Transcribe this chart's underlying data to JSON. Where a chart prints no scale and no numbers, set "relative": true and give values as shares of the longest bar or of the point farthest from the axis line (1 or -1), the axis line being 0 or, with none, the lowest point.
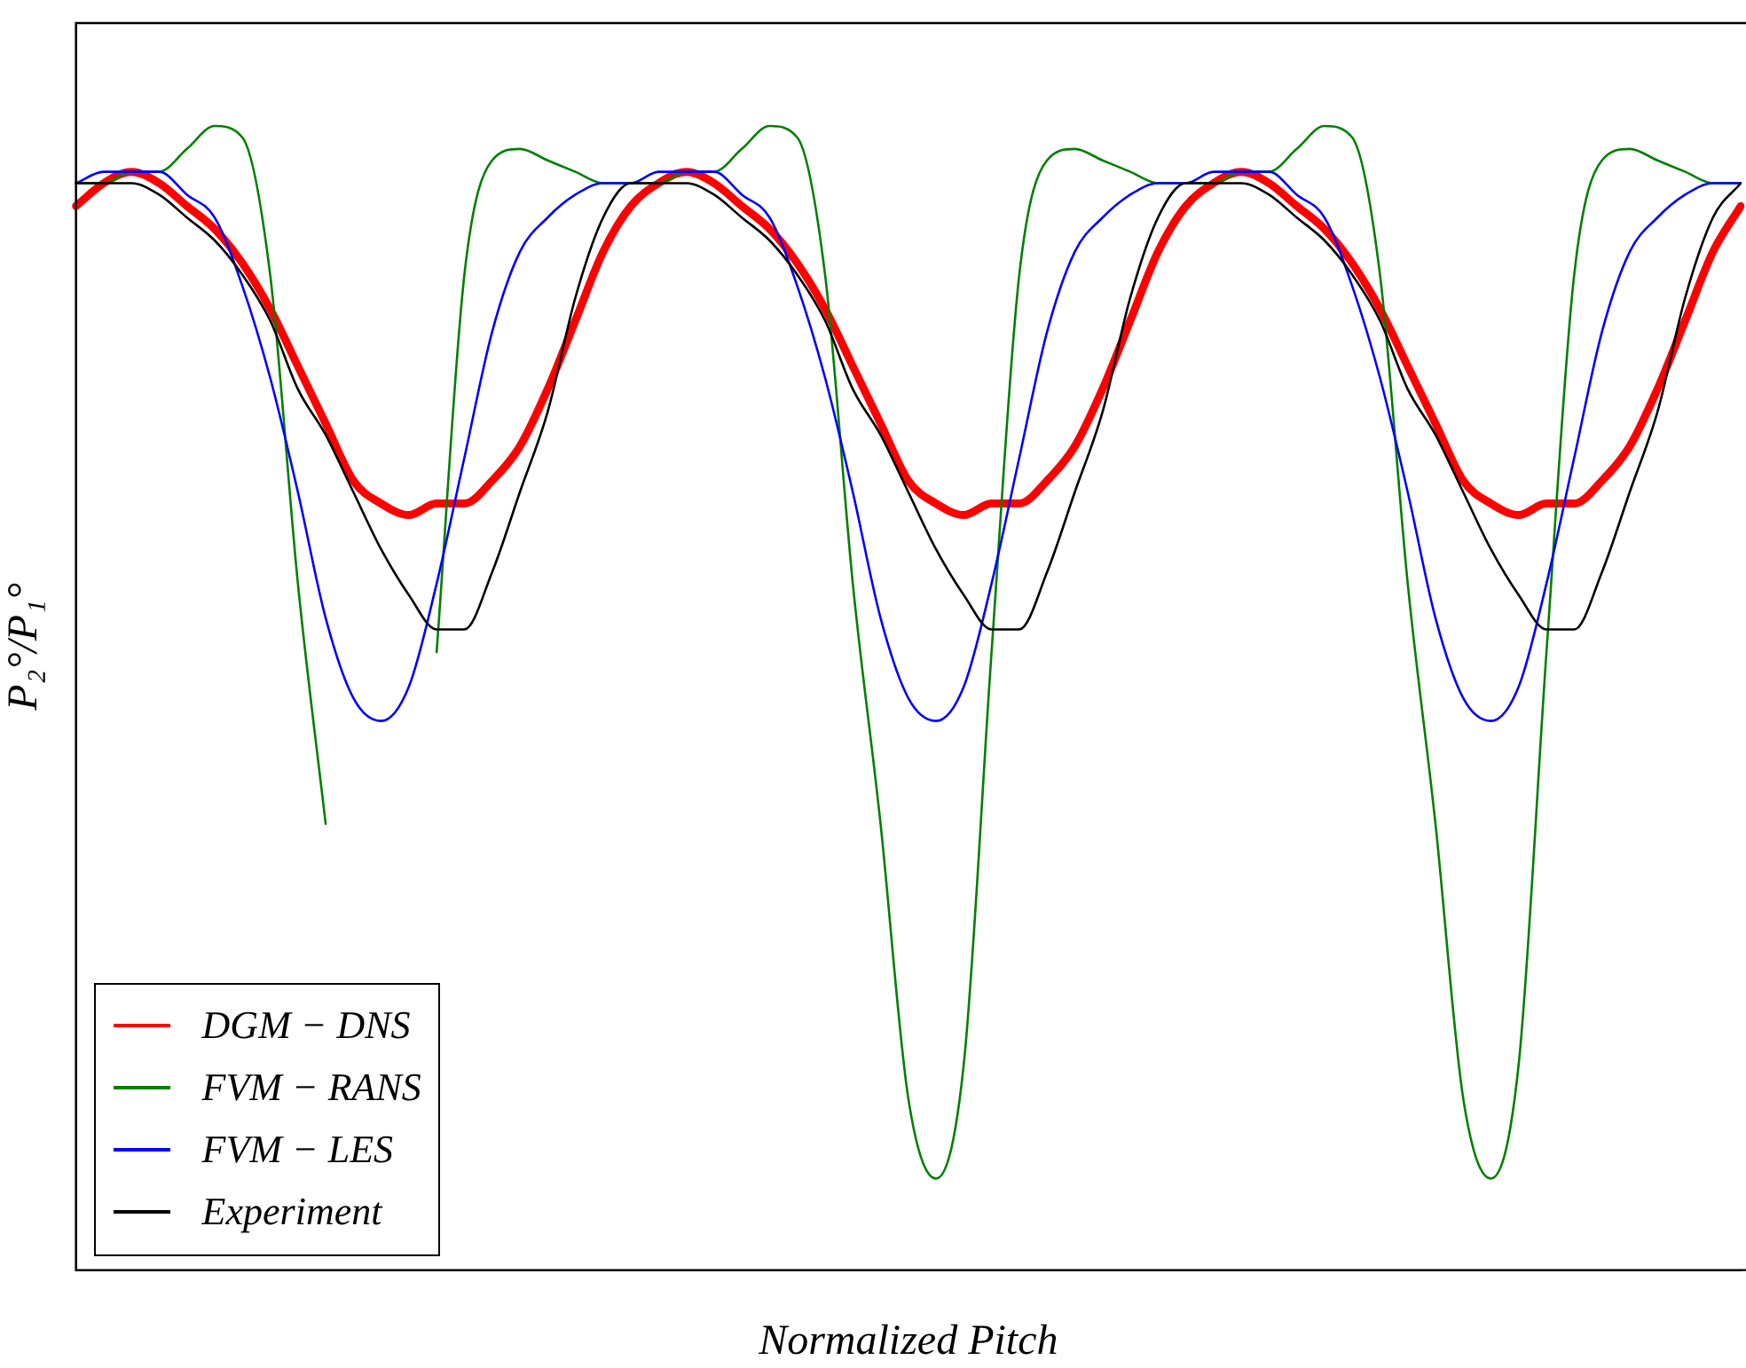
{
  "chart_data": {
    "type": "line",
    "relative": true,
    "xlabel": "Normalized Pitch",
    "ylabel": "P₂°/P₁°",
    "legend": "bottom left",
    "grid": false,
    "marker": "none",
    "line_style": "solid",
    "categories": [
      null,
      null,
      null,
      null,
      null,
      null,
      null,
      null,
      null,
      null,
      null,
      null,
      null,
      null,
      null,
      null,
      null,
      null,
      null,
      null,
      null,
      null,
      null,
      null,
      null,
      null,
      null,
      null,
      null,
      null,
      null,
      null,
      null,
      null,
      null,
      null,
      null,
      null,
      null,
      null,
      null,
      null,
      null,
      null,
      null,
      null,
      null,
      null,
      null,
      null,
      null,
      null,
      null,
      null,
      null,
      null,
      null,
      null,
      null,
      null,
      null
    ],
    "series": [
      {
        "name": "DGM − DNS",
        "color": "#ff0000",
        "values": [
          0.93,
          0.95,
          0.96,
          0.95,
          0.93,
          0.91,
          0.88,
          0.84,
          0.79,
          0.74,
          0.69,
          0.67,
          0.66,
          0.67,
          0.67,
          0.69,
          0.72,
          0.77,
          0.83,
          0.89,
          0.93,
          0.95,
          0.96,
          0.95,
          0.93,
          0.91,
          0.88,
          0.84,
          0.79,
          0.74,
          0.69,
          0.67,
          0.66,
          0.67,
          0.67,
          0.69,
          0.72,
          0.77,
          0.83,
          0.89,
          0.93,
          0.95,
          0.96,
          0.95,
          0.93,
          0.91,
          0.88,
          0.84,
          0.79,
          0.74,
          0.69,
          0.67,
          0.66,
          0.67,
          0.67,
          0.69,
          0.72,
          0.77,
          0.83,
          0.89,
          0.93
        ]
      },
      {
        "name": "FVM − RANS",
        "color": "#008000",
        "values": [
          0.95,
          0.95,
          0.96,
          0.96,
          0.98,
          1.0,
          0.99,
          0.87,
          0.6,
          0.39,
          null,
          null,
          null,
          0.54,
          0.87,
          0.97,
          0.98,
          0.97,
          0.96,
          0.95,
          0.95,
          0.95,
          0.96,
          0.96,
          0.98,
          1.0,
          0.99,
          0.87,
          0.6,
          0.39,
          0.15,
          0.08,
          0.18,
          0.54,
          0.87,
          0.97,
          0.98,
          0.97,
          0.96,
          0.95,
          0.95,
          0.95,
          0.96,
          0.96,
          0.98,
          1.0,
          0.99,
          0.87,
          0.6,
          0.39,
          0.15,
          0.08,
          0.18,
          0.54,
          0.87,
          0.97,
          0.98,
          0.97,
          0.96,
          0.95,
          0.95
        ]
      },
      {
        "name": "FVM − LES",
        "color": "#0000ff",
        "values": [
          0.95,
          0.96,
          0.96,
          0.96,
          0.94,
          0.92,
          0.86,
          0.78,
          0.68,
          0.57,
          0.5,
          0.48,
          0.51,
          0.6,
          0.71,
          0.82,
          0.89,
          0.92,
          0.94,
          0.95,
          0.95,
          0.96,
          0.96,
          0.96,
          0.94,
          0.92,
          0.86,
          0.78,
          0.68,
          0.57,
          0.5,
          0.48,
          0.51,
          0.6,
          0.71,
          0.82,
          0.89,
          0.92,
          0.94,
          0.95,
          0.95,
          0.96,
          0.96,
          0.96,
          0.94,
          0.92,
          0.86,
          0.78,
          0.68,
          0.57,
          0.5,
          0.48,
          0.51,
          0.6,
          0.71,
          0.82,
          0.89,
          0.92,
          0.94,
          0.95,
          0.95
        ]
      },
      {
        "name": "Experiment",
        "color": "#000000",
        "values": [
          0.95,
          0.95,
          0.95,
          0.94,
          0.92,
          0.9,
          0.87,
          0.83,
          0.77,
          0.73,
          0.68,
          0.63,
          0.59,
          0.56,
          0.56,
          0.61,
          0.68,
          0.75,
          0.85,
          0.92,
          0.95,
          0.95,
          0.95,
          0.94,
          0.92,
          0.9,
          0.87,
          0.83,
          0.77,
          0.73,
          0.68,
          0.63,
          0.59,
          0.56,
          0.56,
          0.61,
          0.68,
          0.75,
          0.85,
          0.92,
          0.95,
          0.95,
          0.95,
          0.94,
          0.92,
          0.9,
          0.87,
          0.83,
          0.77,
          0.73,
          0.68,
          0.63,
          0.59,
          0.56,
          0.56,
          0.61,
          0.68,
          0.75,
          0.85,
          0.92,
          0.95
        ]
      }
    ]
  }
}
